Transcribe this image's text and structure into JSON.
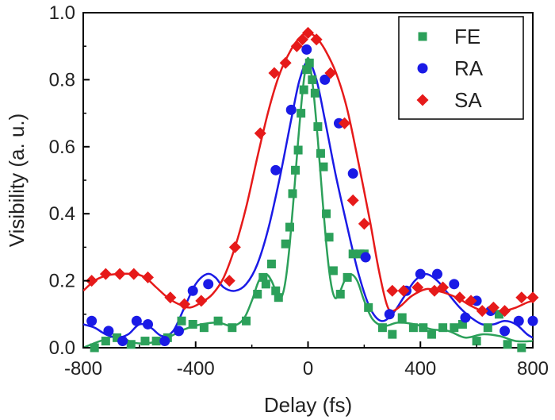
{
  "chart_data": {
    "type": "scatter",
    "xlabel": "Delay (fs)",
    "ylabel": "Visibility (a. u.)",
    "xlim": [
      -800,
      800
    ],
    "ylim": [
      0,
      1.0
    ],
    "x_ticks": [
      -800,
      -400,
      0,
      400,
      800
    ],
    "x_tick_labels": [
      "-800",
      "-400",
      "0",
      "400",
      "800"
    ],
    "y_ticks": [
      0.0,
      0.2,
      0.4,
      0.6,
      0.8,
      1.0
    ],
    "y_tick_labels": [
      "0.0",
      "0.2",
      "0.4",
      "0.6",
      "0.8",
      "1.0"
    ],
    "legend_position": "top-right",
    "series": [
      {
        "name": "FE",
        "marker": "square",
        "color": "#2ca05a",
        "points": [
          [
            -760,
            0.0
          ],
          [
            -720,
            0.02
          ],
          [
            -680,
            0.03
          ],
          [
            -630,
            0.01
          ],
          [
            -580,
            0.02
          ],
          [
            -540,
            0.02
          ],
          [
            -500,
            0.03
          ],
          [
            -450,
            0.08
          ],
          [
            -410,
            0.07
          ],
          [
            -370,
            0.06
          ],
          [
            -320,
            0.08
          ],
          [
            -270,
            0.06
          ],
          [
            -220,
            0.08
          ],
          [
            -180,
            0.16
          ],
          [
            -160,
            0.21
          ],
          [
            -150,
            0.19
          ],
          [
            -130,
            0.25
          ],
          [
            -115,
            0.17
          ],
          [
            -105,
            0.15
          ],
          [
            -80,
            0.31
          ],
          [
            -65,
            0.36
          ],
          [
            -55,
            0.46
          ],
          [
            -45,
            0.53
          ],
          [
            -35,
            0.59
          ],
          [
            -25,
            0.7
          ],
          [
            -15,
            0.77
          ],
          [
            -5,
            0.83
          ],
          [
            5,
            0.85
          ],
          [
            15,
            0.8
          ],
          [
            25,
            0.76
          ],
          [
            35,
            0.66
          ],
          [
            45,
            0.58
          ],
          [
            55,
            0.54
          ],
          [
            65,
            0.4
          ],
          [
            75,
            0.33
          ],
          [
            90,
            0.23
          ],
          [
            115,
            0.16
          ],
          [
            140,
            0.21
          ],
          [
            160,
            0.28
          ],
          [
            185,
            0.28
          ],
          [
            200,
            0.28
          ],
          [
            215,
            0.12
          ],
          [
            265,
            0.06
          ],
          [
            300,
            0.04
          ],
          [
            335,
            0.09
          ],
          [
            375,
            0.06
          ],
          [
            410,
            0.06
          ],
          [
            440,
            0.04
          ],
          [
            480,
            0.06
          ],
          [
            520,
            0.06
          ],
          [
            550,
            0.07
          ],
          [
            600,
            0.02
          ],
          [
            640,
            0.06
          ],
          [
            680,
            0.1
          ],
          [
            710,
            0.01
          ],
          [
            760,
            0.0
          ]
        ],
        "fit": [
          [
            -800,
            0.0
          ],
          [
            -740,
            0.02
          ],
          [
            -680,
            0.035
          ],
          [
            -620,
            0.015
          ],
          [
            -560,
            0.015
          ],
          [
            -500,
            0.03
          ],
          [
            -440,
            0.055
          ],
          [
            -380,
            0.07
          ],
          [
            -320,
            0.075
          ],
          [
            -270,
            0.065
          ],
          [
            -230,
            0.085
          ],
          [
            -200,
            0.14
          ],
          [
            -175,
            0.2
          ],
          [
            -150,
            0.22
          ],
          [
            -130,
            0.2
          ],
          [
            -110,
            0.16
          ],
          [
            -95,
            0.15
          ],
          [
            -80,
            0.2
          ],
          [
            -65,
            0.31
          ],
          [
            -50,
            0.46
          ],
          [
            -35,
            0.62
          ],
          [
            -20,
            0.76
          ],
          [
            -8,
            0.84
          ],
          [
            0,
            0.865
          ],
          [
            8,
            0.84
          ],
          [
            20,
            0.76
          ],
          [
            35,
            0.62
          ],
          [
            50,
            0.46
          ],
          [
            65,
            0.31
          ],
          [
            80,
            0.2
          ],
          [
            95,
            0.15
          ],
          [
            110,
            0.16
          ],
          [
            130,
            0.2
          ],
          [
            150,
            0.22
          ],
          [
            175,
            0.2
          ],
          [
            200,
            0.14
          ],
          [
            230,
            0.085
          ],
          [
            270,
            0.065
          ],
          [
            320,
            0.075
          ],
          [
            380,
            0.07
          ],
          [
            440,
            0.055
          ],
          [
            500,
            0.05
          ],
          [
            560,
            0.03
          ],
          [
            620,
            0.04
          ],
          [
            680,
            0.035
          ],
          [
            740,
            0.02
          ],
          [
            800,
            0.02
          ]
        ]
      },
      {
        "name": "RA",
        "marker": "circle",
        "color": "#1a1ae6",
        "points": [
          [
            -770,
            0.08
          ],
          [
            -710,
            0.05
          ],
          [
            -660,
            0.02
          ],
          [
            -610,
            0.08
          ],
          [
            -570,
            0.07
          ],
          [
            -510,
            0.02
          ],
          [
            -460,
            0.05
          ],
          [
            -410,
            0.17
          ],
          [
            -355,
            0.19
          ],
          [
            -115,
            0.53
          ],
          [
            -60,
            0.71
          ],
          [
            -5,
            0.89
          ],
          [
            60,
            0.8
          ],
          [
            110,
            0.67
          ],
          [
            160,
            0.52
          ],
          [
            205,
            0.27
          ],
          [
            290,
            0.1
          ],
          [
            350,
            0.17
          ],
          [
            400,
            0.22
          ],
          [
            460,
            0.22
          ],
          [
            520,
            0.19
          ],
          [
            560,
            0.09
          ],
          [
            600,
            0.14
          ],
          [
            650,
            0.11
          ],
          [
            700,
            0.05
          ],
          [
            750,
            0.08
          ],
          [
            800,
            0.08
          ]
        ],
        "fit": [
          [
            -800,
            0.07
          ],
          [
            -760,
            0.06
          ],
          [
            -720,
            0.04
          ],
          [
            -680,
            0.03
          ],
          [
            -640,
            0.04
          ],
          [
            -600,
            0.07
          ],
          [
            -560,
            0.06
          ],
          [
            -520,
            0.035
          ],
          [
            -480,
            0.05
          ],
          [
            -440,
            0.12
          ],
          [
            -400,
            0.19
          ],
          [
            -360,
            0.22
          ],
          [
            -330,
            0.21
          ],
          [
            -300,
            0.18
          ],
          [
            -260,
            0.17
          ],
          [
            -220,
            0.19
          ],
          [
            -180,
            0.25
          ],
          [
            -140,
            0.36
          ],
          [
            -100,
            0.51
          ],
          [
            -60,
            0.68
          ],
          [
            -30,
            0.8
          ],
          [
            0,
            0.855
          ],
          [
            30,
            0.8
          ],
          [
            60,
            0.68
          ],
          [
            100,
            0.51
          ],
          [
            140,
            0.36
          ],
          [
            180,
            0.22
          ],
          [
            220,
            0.12
          ],
          [
            260,
            0.08
          ],
          [
            300,
            0.1
          ],
          [
            340,
            0.15
          ],
          [
            380,
            0.2
          ],
          [
            420,
            0.22
          ],
          [
            460,
            0.2
          ],
          [
            500,
            0.16
          ],
          [
            540,
            0.12
          ],
          [
            580,
            0.09
          ],
          [
            620,
            0.07
          ],
          [
            660,
            0.07
          ],
          [
            700,
            0.08
          ],
          [
            740,
            0.07
          ],
          [
            780,
            0.04
          ],
          [
            800,
            0.03
          ]
        ]
      },
      {
        "name": "SA",
        "marker": "diamond",
        "color": "#e61a1a",
        "points": [
          [
            -770,
            0.2
          ],
          [
            -720,
            0.22
          ],
          [
            -670,
            0.22
          ],
          [
            -620,
            0.22
          ],
          [
            -570,
            0.21
          ],
          [
            -490,
            0.15
          ],
          [
            -440,
            0.13
          ],
          [
            -380,
            0.14
          ],
          [
            -280,
            0.2
          ],
          [
            -260,
            0.3
          ],
          [
            -170,
            0.64
          ],
          [
            -120,
            0.82
          ],
          [
            -80,
            0.85
          ],
          [
            -40,
            0.9
          ],
          [
            -20,
            0.92
          ],
          [
            0,
            0.94
          ],
          [
            30,
            0.92
          ],
          [
            80,
            0.82
          ],
          [
            130,
            0.67
          ],
          [
            160,
            0.44
          ],
          [
            200,
            0.37
          ],
          [
            300,
            0.17
          ],
          [
            340,
            0.17
          ],
          [
            390,
            0.18
          ],
          [
            450,
            0.17
          ],
          [
            480,
            0.18
          ],
          [
            540,
            0.15
          ],
          [
            580,
            0.14
          ],
          [
            620,
            0.11
          ],
          [
            660,
            0.12
          ],
          [
            700,
            0.11
          ],
          [
            760,
            0.15
          ],
          [
            800,
            0.15
          ]
        ],
        "fit": [
          [
            -800,
            0.17
          ],
          [
            -760,
            0.2
          ],
          [
            -720,
            0.215
          ],
          [
            -680,
            0.22
          ],
          [
            -620,
            0.22
          ],
          [
            -580,
            0.21
          ],
          [
            -540,
            0.18
          ],
          [
            -500,
            0.15
          ],
          [
            -460,
            0.13
          ],
          [
            -420,
            0.12
          ],
          [
            -380,
            0.135
          ],
          [
            -340,
            0.16
          ],
          [
            -300,
            0.21
          ],
          [
            -260,
            0.3
          ],
          [
            -220,
            0.42
          ],
          [
            -180,
            0.57
          ],
          [
            -140,
            0.71
          ],
          [
            -100,
            0.82
          ],
          [
            -60,
            0.89
          ],
          [
            -30,
            0.925
          ],
          [
            0,
            0.94
          ],
          [
            30,
            0.925
          ],
          [
            60,
            0.89
          ],
          [
            100,
            0.82
          ],
          [
            140,
            0.71
          ],
          [
            180,
            0.55
          ],
          [
            220,
            0.38
          ],
          [
            250,
            0.24
          ],
          [
            280,
            0.13
          ],
          [
            300,
            0.11
          ],
          [
            330,
            0.125
          ],
          [
            370,
            0.155
          ],
          [
            420,
            0.175
          ],
          [
            460,
            0.17
          ],
          [
            500,
            0.16
          ],
          [
            540,
            0.145
          ],
          [
            580,
            0.125
          ],
          [
            620,
            0.11
          ],
          [
            660,
            0.105
          ],
          [
            700,
            0.11
          ],
          [
            740,
            0.12
          ],
          [
            780,
            0.135
          ],
          [
            800,
            0.14
          ]
        ]
      }
    ]
  }
}
